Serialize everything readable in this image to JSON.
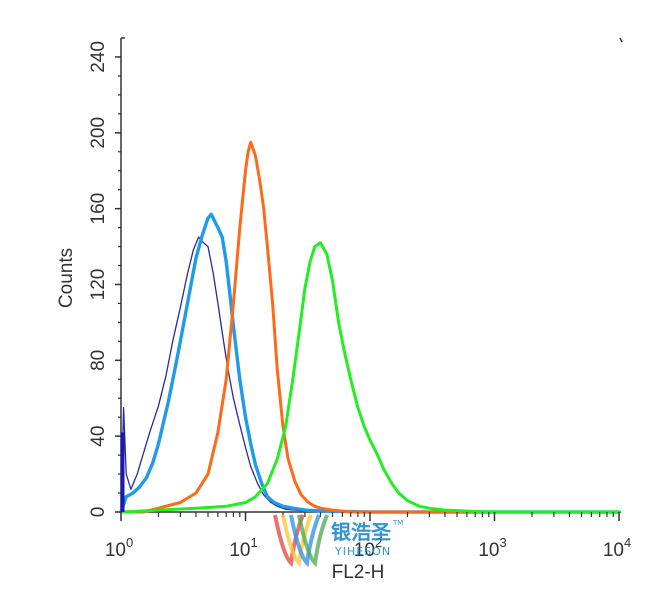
{
  "chart_data": {
    "type": "line",
    "title": "",
    "xlabel": "FL2-H",
    "ylabel": "Counts",
    "x_scale": "log",
    "xlim": [
      1,
      10000
    ],
    "ylim": [
      0,
      250
    ],
    "x_ticks": [
      {
        "value": 1,
        "base": "10",
        "exp": "0"
      },
      {
        "value": 10,
        "base": "10",
        "exp": "1"
      },
      {
        "value": 100,
        "base": "10",
        "exp": "2"
      },
      {
        "value": 1000,
        "base": "10",
        "exp": "3"
      },
      {
        "value": 10000,
        "base": "10",
        "exp": "4"
      }
    ],
    "y_ticks": [
      {
        "value": 0,
        "label": "0"
      },
      {
        "value": 40,
        "label": "40"
      },
      {
        "value": 80,
        "label": "80"
      },
      {
        "value": 120,
        "label": "120"
      },
      {
        "value": 160,
        "label": "160"
      },
      {
        "value": 200,
        "label": "200"
      },
      {
        "value": 240,
        "label": "240"
      }
    ],
    "grid": false,
    "legend": "none",
    "series": [
      {
        "color": "#2a2aa0",
        "stroke_width": 1.3,
        "x": [
          1.0,
          1.05,
          1.1,
          1.2,
          1.35,
          1.5,
          1.7,
          2.0,
          2.3,
          2.6,
          3.0,
          3.4,
          3.8,
          4.2,
          4.6,
          5.0,
          5.5,
          6.0,
          6.6,
          7.2,
          8.0,
          9.0,
          10,
          11,
          12.5,
          14,
          16,
          18,
          21,
          25,
          30,
          40,
          60,
          100,
          10000
        ],
        "y": [
          0,
          55,
          20,
          12,
          20,
          30,
          42,
          56,
          72,
          90,
          108,
          125,
          138,
          145,
          142,
          140,
          126,
          110,
          92,
          76,
          60,
          46,
          34,
          24,
          15,
          9,
          5,
          3,
          1.5,
          1,
          0.6,
          0.4,
          0.2,
          0,
          0
        ]
      },
      {
        "color": "#1f9bea",
        "stroke_width": 3.4,
        "x": [
          1.0,
          1.1,
          1.25,
          1.4,
          1.6,
          1.8,
          2.0,
          2.4,
          2.8,
          3.2,
          3.6,
          4.0,
          4.5,
          5.0,
          5.3,
          5.6,
          6.0,
          6.5,
          7.0,
          7.5,
          8.0,
          9.0,
          10,
          11,
          12,
          13.5,
          15,
          17,
          20,
          24,
          30,
          40,
          60,
          100,
          10000
        ],
        "y": [
          0,
          8,
          10,
          13,
          18,
          26,
          36,
          58,
          80,
          100,
          118,
          134,
          146,
          155,
          157,
          154,
          150,
          145,
          132,
          115,
          98,
          70,
          50,
          36,
          25,
          15,
          8,
          5,
          3,
          2,
          1,
          0.6,
          0.3,
          0,
          0
        ]
      },
      {
        "color": "#ff6a18",
        "stroke_width": 3.0,
        "x": [
          1.0,
          1.5,
          2.0,
          3.0,
          4.0,
          5.0,
          6.0,
          7.0,
          8.0,
          9.0,
          10,
          10.5,
          11,
          12,
          13,
          14,
          15,
          16.5,
          18,
          20,
          22,
          25,
          28,
          32,
          36,
          40,
          50,
          70,
          100,
          10000
        ],
        "y": [
          0,
          0,
          2,
          5,
          10,
          20,
          42,
          70,
          110,
          150,
          180,
          190,
          195,
          188,
          175,
          160,
          140,
          110,
          75,
          45,
          28,
          16,
          9,
          5,
          3,
          2,
          1,
          0,
          0,
          0
        ]
      },
      {
        "color": "#22ee22",
        "stroke_width": 3.0,
        "x": [
          1.0,
          2.0,
          4.0,
          7.0,
          10,
          12,
          15,
          18,
          21,
          24,
          27,
          30,
          33,
          36,
          40,
          45,
          50,
          56,
          62,
          70,
          80,
          90,
          100,
          115,
          130,
          150,
          170,
          200,
          250,
          300,
          400,
          600,
          1000,
          10000
        ],
        "y": [
          0,
          1,
          2,
          3,
          5,
          8,
          15,
          28,
          45,
          70,
          95,
          118,
          132,
          140,
          142,
          136,
          122,
          100,
          85,
          70,
          55,
          45,
          38,
          30,
          22,
          15,
          10,
          6,
          3,
          2,
          1,
          0.5,
          0,
          0
        ]
      }
    ]
  },
  "watermark": {
    "text_cn": "银浩圣",
    "text_en": "YIHESON",
    "tm": "TM"
  }
}
